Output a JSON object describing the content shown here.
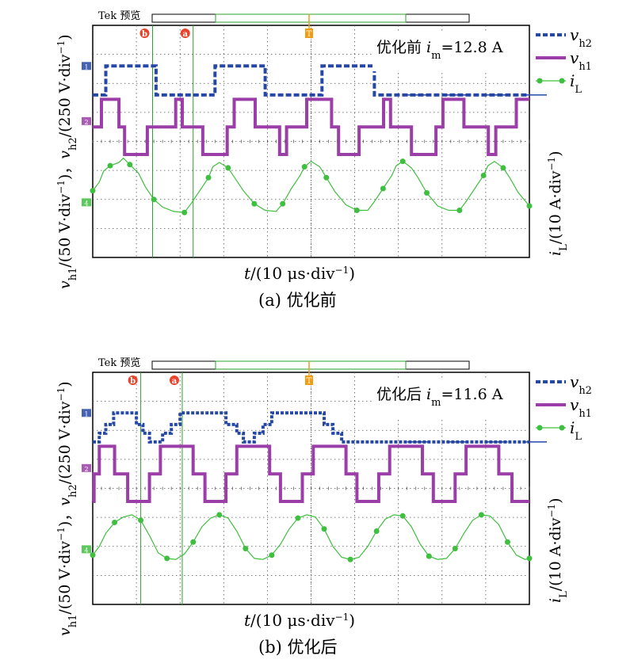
{
  "figure": {
    "panels": [
      {
        "id": "a",
        "caption": "(a) 优化前",
        "scope_label": "Tek 预览",
        "annotation_prefix": "优化前 ",
        "annotation_var": "i",
        "annotation_sub": "m",
        "annotation_value": "=12.8 A",
        "cursor_labels": [
          "b",
          "a",
          "T"
        ],
        "channel_markers": [
          "1",
          "2",
          "4"
        ]
      },
      {
        "id": "b",
        "caption": "(b) 优化后",
        "scope_label": "Tek 预览",
        "annotation_prefix": "优化后 ",
        "annotation_var": "i",
        "annotation_sub": "m",
        "annotation_value": "=11.6 A",
        "cursor_labels": [
          "b",
          "a",
          "T"
        ],
        "channel_markers": [
          "1",
          "2",
          "4"
        ]
      }
    ],
    "xlabel": {
      "var": "t",
      "text": "/(10 μs·div",
      "sup": "−1",
      "close": ")"
    },
    "ylabel_left": {
      "v1": "v",
      "s1": "h1",
      "t1": "/(50 V·div",
      "sup1": "−1",
      "t1b": ")，",
      "v2": "v",
      "s2": "h2",
      "t2": "/(250 V·div",
      "sup2": "−1",
      "t2b": ")"
    },
    "ylabel_right": {
      "v": "i",
      "s": "L",
      "t": "/(10 A·div",
      "sup": "−1",
      "tb": ")"
    },
    "legend": [
      {
        "var": "v",
        "sub": "h2",
        "color": "#2547a6",
        "style": "dashed"
      },
      {
        "var": "v",
        "sub": "h1",
        "color": "#9b3ea8",
        "style": "solid"
      },
      {
        "var": "i",
        "sub": "L",
        "color": "#3fbf3f",
        "style": "marker"
      }
    ]
  },
  "chart_data": [
    {
      "type": "line",
      "title": "",
      "xlabel": "t/(10 μs·div−1)",
      "grid": true,
      "x_divisions": 10,
      "y_divisions": 8,
      "series": [
        {
          "name": "vh2",
          "channel": "1",
          "color": "#2547a6",
          "baseline_div": 5.6,
          "high_div": 6.6,
          "shape": "two-level square",
          "x": [
            0.0,
            0.3,
            0.3,
            1.45,
            1.45,
            2.8,
            2.8,
            3.95,
            3.95,
            5.25,
            5.25,
            6.45,
            6.45,
            7.0,
            10.0
          ],
          "y": [
            0,
            0,
            1,
            1,
            0,
            0,
            1,
            1,
            0,
            0,
            1,
            1,
            0,
            0,
            0
          ],
          "note_tail_noise": true
        },
        {
          "name": "vh1",
          "channel": "2",
          "color": "#9b3ea8",
          "baseline_div": 3.6,
          "shape": "three-level",
          "x": [
            0.0,
            0.2,
            0.2,
            0.6,
            0.6,
            0.73,
            0.73,
            1.25,
            1.25,
            1.9,
            1.9,
            2.05,
            2.05,
            2.52,
            2.52,
            3.08,
            3.08,
            3.24,
            3.24,
            3.72,
            3.72,
            4.28,
            4.28,
            4.44,
            4.44,
            4.9,
            4.9,
            5.47,
            5.47,
            5.63,
            5.63,
            6.1,
            6.1,
            6.66,
            6.66,
            6.82,
            6.82,
            7.3,
            7.3,
            7.86,
            7.86,
            8.02,
            8.02,
            8.5,
            8.5,
            9.06,
            9.06,
            9.23,
            9.23,
            9.7,
            9.7,
            10.0
          ],
          "y": [
            0,
            0,
            1,
            1,
            0,
            0,
            -1,
            -1,
            0,
            0,
            1,
            1,
            0,
            0,
            -1,
            -1,
            0,
            0,
            1,
            1,
            0,
            0,
            -1,
            -1,
            0,
            0,
            1,
            1,
            0,
            0,
            -1,
            -1,
            0,
            0,
            1,
            1,
            0,
            0,
            -1,
            -1,
            0,
            0,
            1,
            1,
            0,
            0,
            -1,
            -1,
            0,
            0,
            1,
            1
          ]
        },
        {
          "name": "iL",
          "channel": "4",
          "color": "#3fbf3f",
          "baseline_div": 1.5,
          "shape": "triangular ripple",
          "x": [
            0.0,
            0.15,
            0.25,
            0.4,
            0.6,
            0.7,
            0.85,
            1.05,
            1.2,
            1.4,
            1.6,
            1.85,
            2.1,
            2.25,
            2.45,
            2.65,
            2.75,
            2.9,
            3.1,
            3.25,
            3.45,
            3.7,
            3.95,
            4.2,
            4.35,
            4.55,
            4.75,
            4.85,
            5.0,
            5.2,
            5.35,
            5.55,
            5.8,
            6.05,
            6.3,
            6.45,
            6.65,
            6.85,
            6.95,
            7.1,
            7.3,
            7.45,
            7.65,
            7.9,
            8.15,
            8.4,
            8.55,
            8.75,
            8.95,
            9.05,
            9.2,
            9.4,
            9.55,
            9.75,
            10.0
          ],
          "y": [
            0.4,
            0.8,
            1.3,
            1.55,
            1.7,
            1.9,
            1.6,
            1.2,
            0.6,
            0.0,
            -0.35,
            -0.55,
            -0.6,
            -0.2,
            0.4,
            1.0,
            1.5,
            1.7,
            1.45,
            1.0,
            0.4,
            -0.2,
            -0.5,
            -0.55,
            -0.2,
            0.5,
            1.1,
            1.5,
            1.75,
            1.5,
            1.0,
            0.35,
            -0.25,
            -0.5,
            -0.5,
            -0.1,
            0.5,
            1.1,
            1.55,
            1.75,
            1.45,
            1.0,
            0.3,
            -0.3,
            -0.5,
            -0.5,
            -0.1,
            0.5,
            1.1,
            1.55,
            1.75,
            1.45,
            1.0,
            0.3,
            -0.3
          ]
        }
      ]
    },
    {
      "type": "line",
      "title": "",
      "xlabel": "t/(10 μs·div−1)",
      "grid": true,
      "x_divisions": 10,
      "y_divisions": 8,
      "series": [
        {
          "name": "vh2",
          "channel": "1",
          "color": "#2547a6",
          "baseline_div": 5.6,
          "shape": "stepped five-level",
          "x": [
            0.0,
            0.15,
            0.15,
            0.3,
            0.3,
            0.48,
            0.48,
            1.0,
            1.0,
            1.15,
            1.15,
            1.3,
            1.3,
            1.6,
            1.6,
            1.8,
            1.8,
            2.0,
            2.0,
            2.15,
            2.15,
            2.55,
            2.55,
            3.05,
            3.05,
            3.3,
            3.3,
            3.45,
            3.45,
            3.7,
            3.7,
            3.9,
            3.9,
            4.1,
            4.1,
            4.3,
            4.3,
            4.5,
            4.5,
            4.65,
            4.65,
            4.85,
            4.85,
            5.3,
            5.3,
            5.5,
            5.5,
            5.7,
            5.7,
            5.9,
            5.9,
            6.1,
            6.1,
            6.3,
            6.3,
            7.0,
            10.0
          ],
          "y": [
            0,
            0,
            0.3,
            0.3,
            0.6,
            0.6,
            1,
            1,
            0.6,
            0.6,
            0.3,
            0.3,
            0,
            0,
            0.3,
            0.3,
            0.6,
            0.6,
            1,
            1,
            1,
            1,
            1,
            1,
            0.6,
            0.6,
            0.3,
            0.3,
            0,
            0,
            0.3,
            0.3,
            0.6,
            0.6,
            1,
            1,
            1,
            1,
            1,
            1,
            1,
            1,
            1,
            1,
            0.6,
            0.6,
            0.3,
            0.3,
            0,
            0,
            0,
            0,
            0,
            0,
            0,
            0,
            0
          ]
        },
        {
          "name": "vh1",
          "channel": "2",
          "color": "#9b3ea8",
          "baseline_div": 3.6,
          "shape": "three-level",
          "x": [
            0.0,
            0.03,
            0.03,
            0.15,
            0.15,
            0.5,
            0.5,
            0.8,
            0.8,
            1.05,
            1.05,
            1.3,
            1.3,
            1.55,
            1.55,
            1.75,
            1.75,
            2.05,
            2.05,
            2.3,
            2.3,
            2.57,
            2.57,
            2.8,
            2.8,
            3.05,
            3.05,
            3.3,
            3.3,
            3.57,
            3.57,
            3.8,
            3.8,
            4.05,
            4.05,
            4.3,
            4.3,
            4.55,
            4.55,
            4.8,
            4.8,
            5.05,
            5.05,
            5.3,
            5.3,
            5.55,
            5.55,
            5.8,
            5.8,
            6.05,
            6.05,
            6.3,
            6.3,
            6.55,
            6.55,
            6.8,
            6.8,
            7.05,
            7.05,
            7.3,
            7.3,
            7.55,
            7.55,
            7.8,
            7.8,
            8.05,
            8.05,
            8.3,
            8.3,
            8.55,
            8.55,
            8.8,
            8.8,
            9.05,
            9.05,
            9.3,
            9.3,
            9.6,
            9.6,
            9.8,
            9.8,
            10.0
          ],
          "y": [
            -1,
            -1,
            0,
            0,
            1,
            1,
            0,
            0,
            -1,
            -1,
            -1,
            -1,
            0,
            0,
            1,
            1,
            1,
            1,
            1,
            1,
            0,
            0,
            -1,
            -1,
            -1,
            -1,
            0,
            0,
            1,
            1,
            1,
            1,
            1,
            1,
            0,
            0,
            -1,
            -1,
            -1,
            -1,
            0,
            0,
            1,
            1,
            1,
            1,
            1,
            1,
            0,
            0,
            -1,
            -1,
            -1,
            -1,
            0,
            0,
            1,
            1,
            1,
            1,
            1,
            1,
            0,
            0,
            -1,
            -1,
            -1,
            -1,
            0,
            0,
            1,
            1,
            1,
            1,
            1,
            1,
            0,
            0,
            -1,
            -1,
            -1,
            -1
          ]
        },
        {
          "name": "iL",
          "channel": "4",
          "color": "#3fbf3f",
          "baseline_div": 1.5,
          "shape": "sinusoidal ripple",
          "x": [
            0.0,
            0.15,
            0.3,
            0.5,
            0.7,
            0.9,
            1.1,
            1.3,
            1.5,
            1.7,
            1.9,
            2.1,
            2.3,
            2.5,
            2.7,
            2.9,
            3.1,
            3.3,
            3.5,
            3.7,
            3.9,
            4.1,
            4.3,
            4.5,
            4.7,
            4.9,
            5.1,
            5.3,
            5.5,
            5.7,
            5.9,
            6.1,
            6.3,
            6.5,
            6.7,
            6.9,
            7.1,
            7.3,
            7.5,
            7.7,
            7.9,
            8.1,
            8.3,
            8.5,
            8.7,
            8.9,
            9.1,
            9.3,
            9.5,
            9.7,
            9.9,
            10.0
          ],
          "y": [
            -0.4,
            0.0,
            0.6,
            1.1,
            1.35,
            1.45,
            1.2,
            0.5,
            -0.3,
            -0.55,
            -0.6,
            -0.35,
            0.2,
            0.9,
            1.3,
            1.45,
            1.3,
            0.7,
            -0.1,
            -0.55,
            -0.6,
            -0.4,
            0.1,
            0.8,
            1.3,
            1.45,
            1.35,
            0.8,
            0.0,
            -0.5,
            -0.6,
            -0.5,
            0.0,
            0.7,
            1.25,
            1.45,
            1.4,
            0.9,
            0.1,
            -0.45,
            -0.6,
            -0.55,
            -0.1,
            0.6,
            1.2,
            1.45,
            1.4,
            1.0,
            0.2,
            -0.4,
            -0.6,
            -0.55
          ]
        }
      ]
    }
  ]
}
